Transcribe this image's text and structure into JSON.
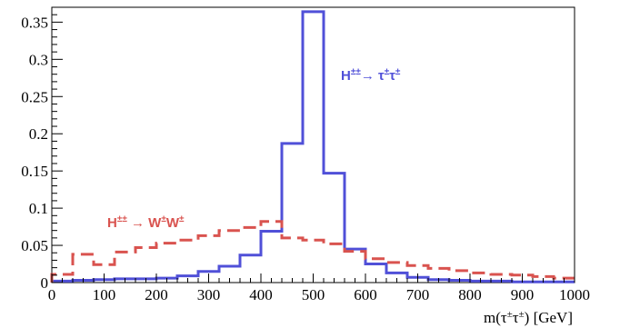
{
  "chart_data": {
    "type": "histogram",
    "xlabel": "m(τ±τ±) [GeV]",
    "ylabel": "",
    "xlim": [
      0,
      1000
    ],
    "ylim": [
      0,
      0.37
    ],
    "bin_width": 40,
    "x_ticks": [
      "0",
      "100",
      "200",
      "300",
      "400",
      "500",
      "600",
      "700",
      "800",
      "900",
      "1000"
    ],
    "y_ticks": [
      "0",
      "0.05",
      "0.1",
      "0.15",
      "0.2",
      "0.25",
      "0.3",
      "0.35"
    ],
    "x_tick_values": [
      0,
      100,
      200,
      300,
      400,
      500,
      600,
      700,
      800,
      900,
      1000
    ],
    "y_tick_values": [
      0,
      0.05,
      0.1,
      0.15,
      0.2,
      0.25,
      0.3,
      0.35
    ],
    "grid": false,
    "series": [
      {
        "label_text": "H±±→ τ±τ±",
        "color": "#5050d8",
        "style": "solid",
        "bin_edges": [
          0,
          40,
          80,
          120,
          160,
          200,
          240,
          280,
          320,
          360,
          400,
          440,
          480,
          520,
          560,
          600,
          640,
          680,
          720,
          760,
          800,
          840,
          880,
          920,
          960,
          1000
        ],
        "values": [
          0.002,
          0.003,
          0.004,
          0.005,
          0.005,
          0.006,
          0.009,
          0.015,
          0.022,
          0.037,
          0.069,
          0.187,
          0.364,
          0.147,
          0.045,
          0.025,
          0.013,
          0.007,
          0.004,
          0.003,
          0.002,
          0.002,
          0.001,
          0.001,
          0.001
        ]
      },
      {
        "label_text": "H±± → W±W±",
        "color": "#d9534f",
        "style": "dashed",
        "bin_edges": [
          0,
          40,
          80,
          120,
          160,
          200,
          240,
          280,
          320,
          360,
          400,
          440,
          480,
          520,
          560,
          600,
          640,
          680,
          720,
          760,
          800,
          840,
          880,
          920,
          960,
          1000
        ],
        "values": [
          0.011,
          0.038,
          0.024,
          0.041,
          0.047,
          0.053,
          0.057,
          0.063,
          0.07,
          0.074,
          0.082,
          0.06,
          0.057,
          0.052,
          0.042,
          0.032,
          0.027,
          0.023,
          0.019,
          0.016,
          0.013,
          0.011,
          0.01,
          0.008,
          0.006
        ]
      }
    ]
  }
}
